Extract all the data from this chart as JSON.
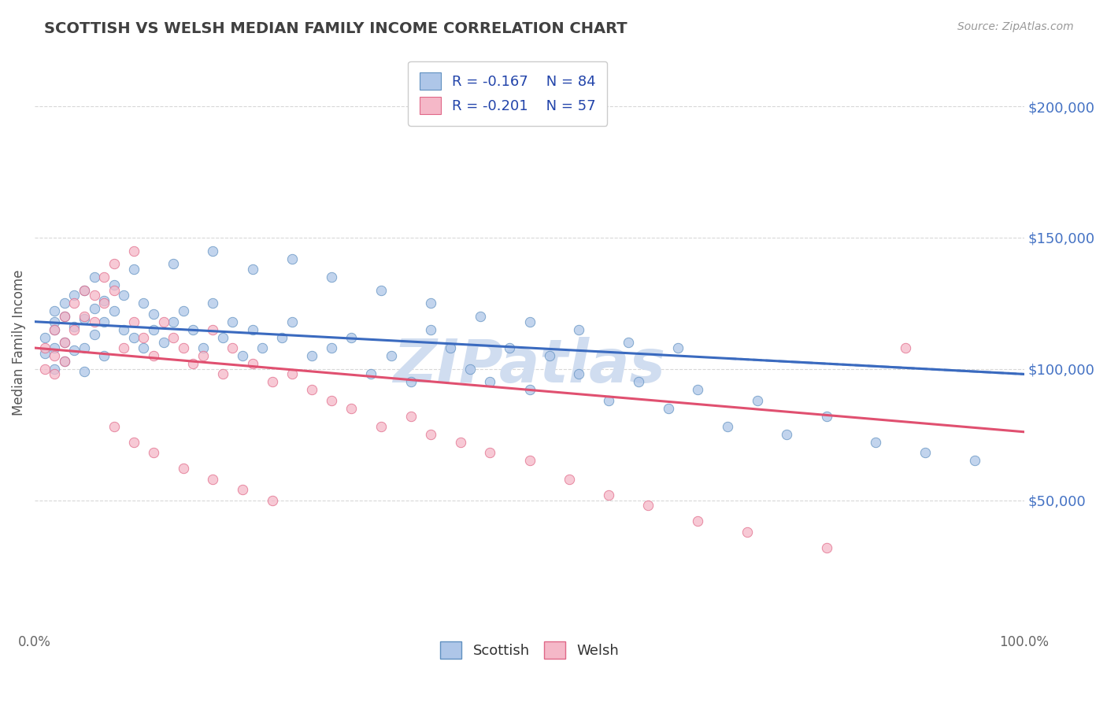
{
  "title": "SCOTTISH VS WELSH MEDIAN FAMILY INCOME CORRELATION CHART",
  "source_text": "Source: ZipAtlas.com",
  "xlabel": "",
  "ylabel": "Median Family Income",
  "xlim": [
    0.0,
    1.0
  ],
  "ylim": [
    0,
    220000
  ],
  "yticks": [
    50000,
    100000,
    150000,
    200000
  ],
  "ytick_labels": [
    "$50,000",
    "$100,000",
    "$150,000",
    "$200,000"
  ],
  "xtick_labels": [
    "0.0%",
    "100.0%"
  ],
  "background_color": "#ffffff",
  "grid_color": "#c8c8c8",
  "title_color": "#404040",
  "title_fontsize": 14,
  "axis_label_color": "#555555",
  "ytick_color": "#4472c4",
  "xtick_color": "#666666",
  "scatter_scottish_color": "#aec6e8",
  "scatter_welsh_color": "#f5b8c8",
  "scatter_scottish_edge": "#6090c0",
  "scatter_welsh_edge": "#e06888",
  "line_scottish_color": "#3a6abf",
  "line_welsh_color": "#e05070",
  "legend_r_scottish": "R = -0.167",
  "legend_n_scottish": "N = 84",
  "legend_r_welsh": "R = -0.201",
  "legend_n_welsh": "N = 57",
  "legend_color": "#2244aa",
  "watermark": "ZIPatlas",
  "watermark_color": "#d0ddf0",
  "scatter_size": 80,
  "legend_label_scottish": "Scottish",
  "legend_label_welsh": "Welsh",
  "scottish_intercept": 118000,
  "scottish_slope": -20000,
  "welsh_intercept": 108000,
  "welsh_slope": -32000,
  "scottish_x": [
    0.01,
    0.01,
    0.02,
    0.02,
    0.02,
    0.02,
    0.02,
    0.03,
    0.03,
    0.03,
    0.03,
    0.04,
    0.04,
    0.04,
    0.05,
    0.05,
    0.05,
    0.05,
    0.06,
    0.06,
    0.06,
    0.07,
    0.07,
    0.07,
    0.08,
    0.08,
    0.09,
    0.09,
    0.1,
    0.1,
    0.11,
    0.11,
    0.12,
    0.12,
    0.13,
    0.14,
    0.15,
    0.16,
    0.17,
    0.18,
    0.19,
    0.2,
    0.21,
    0.22,
    0.23,
    0.25,
    0.26,
    0.28,
    0.3,
    0.32,
    0.34,
    0.36,
    0.38,
    0.4,
    0.42,
    0.44,
    0.46,
    0.48,
    0.5,
    0.52,
    0.55,
    0.58,
    0.61,
    0.64,
    0.67,
    0.7,
    0.73,
    0.76,
    0.8,
    0.85,
    0.9,
    0.95,
    0.14,
    0.18,
    0.22,
    0.26,
    0.3,
    0.35,
    0.4,
    0.45,
    0.5,
    0.55,
    0.6,
    0.65
  ],
  "scottish_y": [
    112000,
    106000,
    118000,
    108000,
    122000,
    100000,
    115000,
    120000,
    110000,
    125000,
    103000,
    116000,
    128000,
    107000,
    119000,
    130000,
    108000,
    99000,
    123000,
    113000,
    135000,
    126000,
    118000,
    105000,
    132000,
    122000,
    115000,
    128000,
    138000,
    112000,
    125000,
    108000,
    121000,
    115000,
    110000,
    118000,
    122000,
    115000,
    108000,
    125000,
    112000,
    118000,
    105000,
    115000,
    108000,
    112000,
    118000,
    105000,
    108000,
    112000,
    98000,
    105000,
    95000,
    115000,
    108000,
    100000,
    95000,
    108000,
    92000,
    105000,
    98000,
    88000,
    95000,
    85000,
    92000,
    78000,
    88000,
    75000,
    82000,
    72000,
    68000,
    65000,
    140000,
    145000,
    138000,
    142000,
    135000,
    130000,
    125000,
    120000,
    118000,
    115000,
    110000,
    108000
  ],
  "welsh_x": [
    0.01,
    0.01,
    0.02,
    0.02,
    0.02,
    0.03,
    0.03,
    0.03,
    0.04,
    0.04,
    0.05,
    0.05,
    0.06,
    0.06,
    0.07,
    0.07,
    0.08,
    0.08,
    0.09,
    0.1,
    0.1,
    0.11,
    0.12,
    0.13,
    0.14,
    0.15,
    0.16,
    0.17,
    0.18,
    0.19,
    0.2,
    0.22,
    0.24,
    0.26,
    0.28,
    0.3,
    0.32,
    0.35,
    0.38,
    0.4,
    0.43,
    0.46,
    0.5,
    0.54,
    0.58,
    0.62,
    0.67,
    0.72,
    0.8,
    0.88,
    0.08,
    0.1,
    0.12,
    0.15,
    0.18,
    0.21,
    0.24
  ],
  "welsh_y": [
    108000,
    100000,
    115000,
    105000,
    98000,
    120000,
    110000,
    103000,
    125000,
    115000,
    130000,
    120000,
    128000,
    118000,
    135000,
    125000,
    140000,
    130000,
    108000,
    145000,
    118000,
    112000,
    105000,
    118000,
    112000,
    108000,
    102000,
    105000,
    115000,
    98000,
    108000,
    102000,
    95000,
    98000,
    92000,
    88000,
    85000,
    78000,
    82000,
    75000,
    72000,
    68000,
    65000,
    58000,
    52000,
    48000,
    42000,
    38000,
    32000,
    108000,
    78000,
    72000,
    68000,
    62000,
    58000,
    54000,
    50000
  ]
}
